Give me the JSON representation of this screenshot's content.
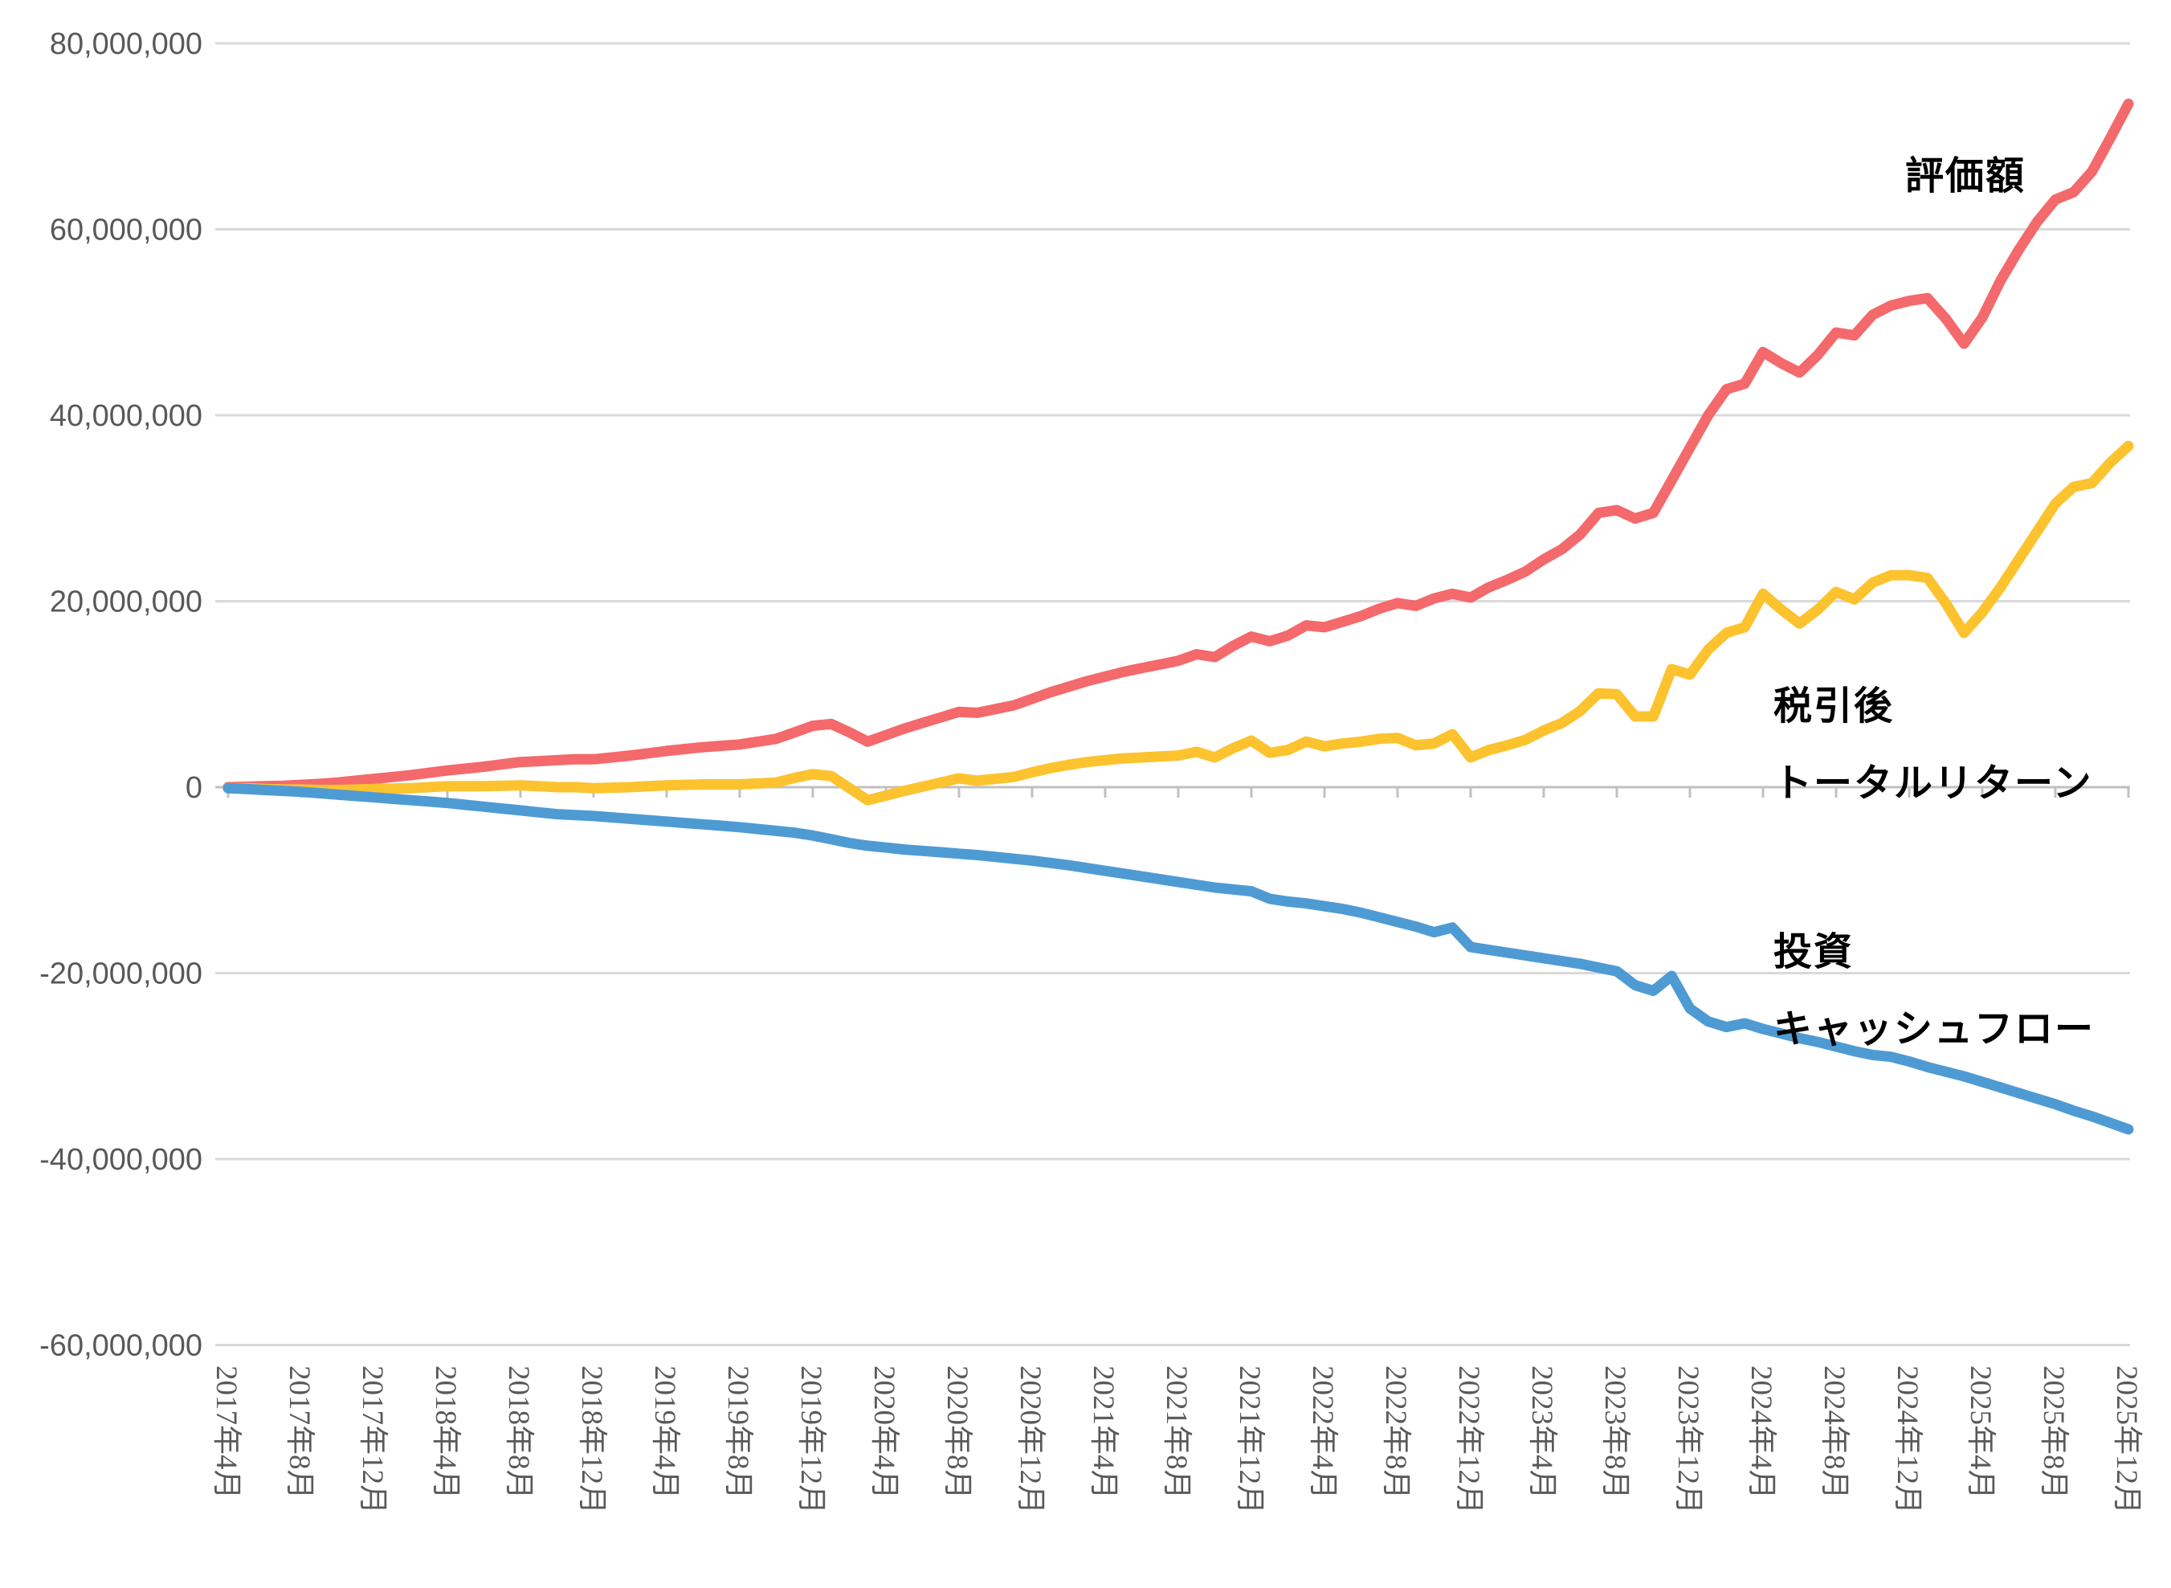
{
  "chart_data": {
    "type": "line",
    "title": "",
    "xlabel": "",
    "ylabel": "",
    "unit": "JPY",
    "value_scale_to_yen": 1000000,
    "x_start": "2017-04",
    "x_interval_months": 1,
    "n_points": 105,
    "grid": "horizontal-only",
    "legend_position": "inline-annotations",
    "ylim": [
      -60000000,
      80000000
    ],
    "y_ticks": [
      80000000,
      60000000,
      40000000,
      20000000,
      0,
      -20000000,
      -40000000,
      -60000000
    ],
    "y_tick_labels": [
      "80,000,000",
      "60,000,000",
      "40,000,000",
      "20,000,000",
      "0",
      "-20,000,000",
      "-40,000,000",
      "-60,000,000"
    ],
    "x_tick_every_n_months": 4,
    "x_tick_labels": [
      "2017年4月",
      "2017年8月",
      "2017年12月",
      "2018年4月",
      "2018年8月",
      "2018年12月",
      "2019年4月",
      "2019年8月",
      "2019年12月",
      "2020年4月",
      "2020年8月",
      "2020年12月",
      "2021年4月",
      "2021年8月",
      "2021年12月",
      "2022年4月",
      "2022年8月",
      "2022年12月",
      "2023年4月",
      "2023年8月",
      "2023年12月",
      "2024年4月",
      "2024年8月",
      "2024年12月",
      "2025年4月",
      "2025年8月",
      "2025年12月"
    ],
    "series": [
      {
        "name": "評価額",
        "color": "#f4696b",
        "values_million_jpy": [
          0.0,
          0.05,
          0.1,
          0.15,
          0.25,
          0.35,
          0.5,
          0.7,
          0.9,
          1.1,
          1.3,
          1.55,
          1.8,
          2.0,
          2.2,
          2.45,
          2.7,
          2.8,
          2.9,
          3.0,
          3.0,
          3.2,
          3.4,
          3.65,
          3.9,
          4.1,
          4.3,
          4.45,
          4.6,
          4.9,
          5.2,
          5.9,
          6.6,
          6.8,
          5.9,
          4.9,
          5.6,
          6.3,
          6.9,
          7.5,
          8.1,
          8.0,
          8.4,
          8.8,
          9.5,
          10.2,
          10.8,
          11.4,
          11.9,
          12.4,
          12.8,
          13.2,
          13.6,
          14.3,
          14.0,
          15.2,
          16.2,
          15.7,
          16.3,
          17.4,
          17.2,
          17.8,
          18.4,
          19.2,
          19.8,
          19.5,
          20.3,
          20.8,
          20.4,
          21.5,
          22.3,
          23.2,
          24.5,
          25.6,
          27.2,
          29.5,
          29.8,
          28.9,
          29.5,
          33.0,
          36.5,
          40.0,
          42.8,
          43.4,
          46.8,
          45.6,
          44.6,
          46.5,
          48.9,
          48.6,
          50.8,
          51.8,
          52.3,
          52.6,
          50.4,
          47.7,
          50.5,
          54.5,
          57.8,
          60.8,
          63.2,
          64.0,
          66.2,
          69.8,
          73.5
        ]
      },
      {
        "name": "税引後トータルリターン",
        "color": "#fcc32f",
        "values_million_jpy": [
          -0.1,
          -0.1,
          -0.2,
          -0.25,
          -0.25,
          -0.3,
          -0.3,
          -0.25,
          -0.2,
          -0.15,
          -0.1,
          0.0,
          0.1,
          0.1,
          0.1,
          0.15,
          0.2,
          0.1,
          0.0,
          0.0,
          -0.1,
          -0.05,
          0.0,
          0.1,
          0.2,
          0.25,
          0.3,
          0.3,
          0.3,
          0.4,
          0.5,
          1.0,
          1.4,
          1.2,
          -0.1,
          -1.4,
          -0.9,
          -0.4,
          0.05,
          0.5,
          0.95,
          0.7,
          0.9,
          1.1,
          1.6,
          2.05,
          2.4,
          2.7,
          2.9,
          3.1,
          3.2,
          3.3,
          3.4,
          3.8,
          3.2,
          4.2,
          5.0,
          3.7,
          4.0,
          4.9,
          4.4,
          4.7,
          4.9,
          5.2,
          5.3,
          4.5,
          4.7,
          5.7,
          3.2,
          4.0,
          4.5,
          5.1,
          6.1,
          6.9,
          8.2,
          10.1,
          10.0,
          7.6,
          7.6,
          12.7,
          12.1,
          14.8,
          16.6,
          17.2,
          20.8,
          19.1,
          17.6,
          19.1,
          21.0,
          20.2,
          22.0,
          22.8,
          22.8,
          22.5,
          19.8,
          16.6,
          18.8,
          21.5,
          24.5,
          27.5,
          30.5,
          32.3,
          32.7,
          34.9,
          36.7
        ]
      },
      {
        "name": "投資キャッシュフロー",
        "color": "#4e9bd4",
        "values_million_jpy": [
          -0.1,
          -0.2,
          -0.3,
          -0.4,
          -0.5,
          -0.65,
          -0.8,
          -0.95,
          -1.1,
          -1.25,
          -1.4,
          -1.55,
          -1.7,
          -1.9,
          -2.1,
          -2.3,
          -2.5,
          -2.7,
          -2.9,
          -3.0,
          -3.1,
          -3.25,
          -3.4,
          -3.55,
          -3.7,
          -3.85,
          -4.0,
          -4.15,
          -4.3,
          -4.5,
          -4.7,
          -4.9,
          -5.2,
          -5.6,
          -6.0,
          -6.3,
          -6.5,
          -6.7,
          -6.85,
          -7.0,
          -7.15,
          -7.3,
          -7.5,
          -7.7,
          -7.9,
          -8.15,
          -8.4,
          -8.7,
          -9.0,
          -9.3,
          -9.6,
          -9.9,
          -10.2,
          -10.5,
          -10.8,
          -11.0,
          -11.2,
          -12.0,
          -12.3,
          -12.5,
          -12.8,
          -13.1,
          -13.5,
          -14.0,
          -14.5,
          -15.0,
          -15.6,
          -15.1,
          -17.2,
          -17.5,
          -17.8,
          -18.1,
          -18.4,
          -18.7,
          -19.0,
          -19.4,
          -19.8,
          -21.3,
          -21.9,
          -20.3,
          -23.8,
          -25.2,
          -25.8,
          -25.4,
          -26.0,
          -26.5,
          -27.0,
          -27.4,
          -27.9,
          -28.4,
          -28.8,
          -29.0,
          -29.5,
          -30.1,
          -30.6,
          -31.1,
          -31.7,
          -32.3,
          -32.9,
          -33.5,
          -34.1,
          -34.8,
          -35.4,
          -36.1,
          -36.8
        ]
      }
    ],
    "annotations": [
      {
        "lines": [
          "評価額"
        ]
      },
      {
        "lines": [
          "税引後",
          "トータルリターン"
        ]
      },
      {
        "lines": [
          "投資",
          "キャッシュフロー"
        ]
      }
    ]
  },
  "styles": {
    "background": "#ffffff",
    "gridline_color": "#d9d9d9",
    "axis_line_color": "#c0c0c0",
    "tick_color": "#c0c0c0",
    "axis_text_color": "#595959",
    "annotation_text_color": "#000000"
  }
}
